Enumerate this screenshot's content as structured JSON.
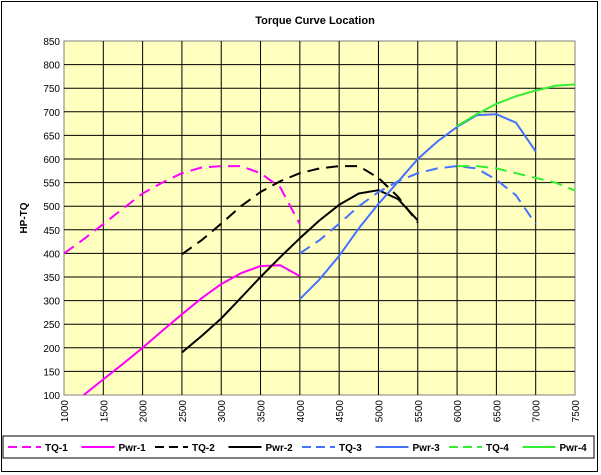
{
  "chart_data": {
    "type": "line",
    "title": "Torque Curve Location",
    "xlabel": "",
    "ylabel": "HP-TQ",
    "xlim": [
      1000,
      7500
    ],
    "ylim": [
      100,
      850
    ],
    "xticks": [
      1000,
      1500,
      2000,
      2500,
      3000,
      3500,
      4000,
      4500,
      5000,
      5500,
      6000,
      6500,
      7000,
      7500
    ],
    "yticks": [
      100,
      150,
      200,
      250,
      300,
      350,
      400,
      450,
      500,
      550,
      600,
      650,
      700,
      750,
      800,
      850
    ],
    "grid": true,
    "legend_position": "bottom",
    "plot_background": "#FFFFC0",
    "series": [
      {
        "name": "TQ-1",
        "color": "#FF00FF",
        "dash": "dashed",
        "x": [
          1000,
          1250,
          1500,
          1750,
          2000,
          2250,
          2500,
          2750,
          3000,
          3250,
          3500,
          3750,
          4000
        ],
        "y": [
          400,
          430,
          462,
          495,
          527,
          550,
          570,
          582,
          585,
          585,
          570,
          540,
          462
        ]
      },
      {
        "name": "Pwr-1",
        "color": "#FF00FF",
        "dash": "solid",
        "x": [
          1250,
          1500,
          1750,
          2000,
          2250,
          2500,
          2750,
          3000,
          3250,
          3500,
          3750,
          4000
        ],
        "y": [
          100,
          133,
          166,
          200,
          236,
          271,
          305,
          335,
          358,
          373,
          375,
          352
        ]
      },
      {
        "name": "TQ-2",
        "color": "#000000",
        "dash": "dashed",
        "x": [
          2500,
          2750,
          3000,
          3250,
          3500,
          3750,
          4000,
          4250,
          4500,
          4750,
          5000,
          5250,
          5500
        ],
        "y": [
          398,
          428,
          463,
          500,
          530,
          553,
          570,
          580,
          585,
          585,
          560,
          520,
          465
        ]
      },
      {
        "name": "Pwr-2",
        "color": "#000000",
        "dash": "solid",
        "x": [
          2500,
          2750,
          3000,
          3250,
          3500,
          3750,
          4000,
          4250,
          4500,
          4750,
          5000,
          5250,
          5500
        ],
        "y": [
          190,
          225,
          262,
          306,
          350,
          392,
          432,
          470,
          503,
          527,
          534,
          515,
          470
        ]
      },
      {
        "name": "TQ-3",
        "color": "#4472FF",
        "dash": "dashed",
        "x": [
          4000,
          4250,
          4500,
          4750,
          5000,
          5250,
          5500,
          5750,
          6000,
          6250,
          6500,
          6750,
          7000
        ],
        "y": [
          400,
          428,
          463,
          500,
          530,
          553,
          570,
          580,
          585,
          580,
          556,
          523,
          462
        ]
      },
      {
        "name": "Pwr-3",
        "color": "#4472FF",
        "dash": "solid",
        "x": [
          4000,
          4250,
          4500,
          4750,
          5000,
          5250,
          5500,
          5750,
          6000,
          6250,
          6500,
          6750,
          7000
        ],
        "y": [
          303,
          345,
          395,
          453,
          505,
          552,
          600,
          637,
          668,
          693,
          695,
          677,
          616
        ]
      },
      {
        "name": "TQ-4",
        "color": "#33EE33",
        "dash": "dashed",
        "x": [
          6000,
          6250,
          6500,
          6750,
          7000,
          7250,
          7500
        ],
        "y": [
          585,
          585,
          580,
          570,
          560,
          550,
          533
        ]
      },
      {
        "name": "Pwr-4",
        "color": "#33EE33",
        "dash": "solid",
        "x": [
          6000,
          6250,
          6500,
          6750,
          7000,
          7250,
          7500
        ],
        "y": [
          670,
          695,
          717,
          733,
          745,
          755,
          758
        ]
      }
    ]
  }
}
